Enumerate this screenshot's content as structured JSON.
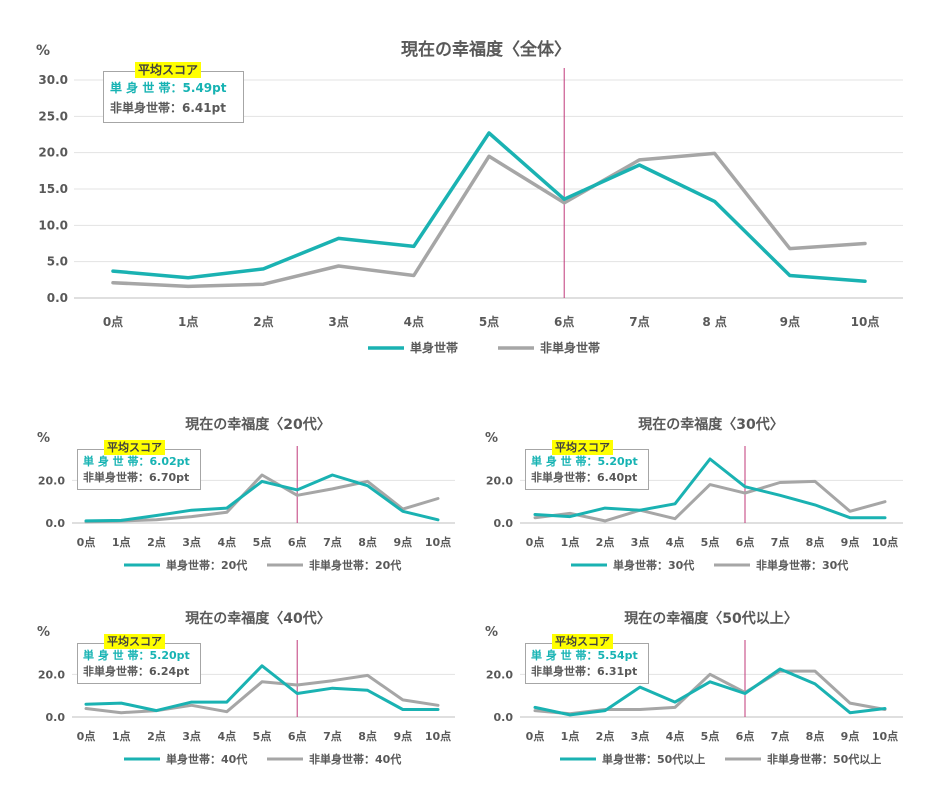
{
  "chart_data": [
    {
      "type": "line",
      "title": "現在の幸福度〈全体〉",
      "ylabel": "%",
      "ylim": [
        0,
        30
      ],
      "yticks": [
        "0.0",
        "5.0",
        "10.0",
        "15.0",
        "20.0",
        "25.0",
        "30.0"
      ],
      "categories": [
        "0点",
        "1点",
        "2点",
        "3点",
        "4点",
        "5点",
        "6点",
        "7点",
        "8 点",
        "9点",
        "10点"
      ],
      "marker_category": "6点",
      "grid": true,
      "legend": "bottom",
      "series": [
        {
          "name": "単身世帯",
          "color": "#1ab2b2",
          "values": [
            3.7,
            2.8,
            4.0,
            8.2,
            7.1,
            22.7,
            13.6,
            18.3,
            13.3,
            3.1,
            2.3
          ]
        },
        {
          "name": "非単身世帯",
          "color": "#a6a6a6",
          "values": [
            2.1,
            1.6,
            1.9,
            4.4,
            3.1,
            19.5,
            13.1,
            19.0,
            19.9,
            6.8,
            7.5
          ]
        }
      ],
      "score": {
        "heading": "平均スコア",
        "single": "単 身 世 帯：5.49pt",
        "non_single": "非単身世帯：6.41pt"
      }
    },
    {
      "type": "line",
      "title": "現在の幸福度〈20代〉",
      "ylabel": "%",
      "ylim": [
        0,
        30
      ],
      "yticks": [
        "0.0",
        "20.0"
      ],
      "categories": [
        "0点",
        "1点",
        "2点",
        "3点",
        "4点",
        "5点",
        "6点",
        "7点",
        "8点",
        "9点",
        "10点"
      ],
      "marker_category": "6点",
      "grid": true,
      "legend": "bottom",
      "series": [
        {
          "name": "単身世帯：20代",
          "color": "#1ab2b2",
          "values": [
            1.0,
            1.2,
            3.5,
            6.0,
            7.0,
            19.5,
            15.5,
            22.5,
            17.5,
            5.5,
            1.5
          ]
        },
        {
          "name": "非単身世帯：20代",
          "color": "#a6a6a6",
          "values": [
            0.5,
            1.0,
            1.5,
            3.0,
            5.0,
            22.5,
            13.0,
            16.0,
            19.5,
            6.5,
            11.5
          ]
        }
      ],
      "score": {
        "heading": "平均スコア",
        "single": "単 身 世 帯：6.02pt",
        "non_single": "非単身世帯：6.70pt"
      }
    },
    {
      "type": "line",
      "title": "現在の幸福度〈30代〉",
      "ylabel": "%",
      "ylim": [
        0,
        30
      ],
      "yticks": [
        "0.0",
        "20.0"
      ],
      "categories": [
        "0点",
        "1点",
        "2点",
        "3点",
        "4点",
        "5点",
        "6点",
        "7点",
        "8点",
        "9点",
        "10点"
      ],
      "marker_category": "6点",
      "grid": true,
      "legend": "bottom",
      "series": [
        {
          "name": "単身世帯：30代",
          "color": "#1ab2b2",
          "values": [
            4.0,
            3.0,
            7.0,
            6.0,
            9.0,
            30.0,
            17.0,
            13.0,
            8.5,
            2.5,
            2.5
          ]
        },
        {
          "name": "非単身世帯：30代",
          "color": "#a6a6a6",
          "values": [
            2.5,
            4.5,
            1.0,
            6.0,
            2.0,
            18.0,
            14.0,
            19.0,
            19.5,
            5.5,
            10.0
          ]
        }
      ],
      "score": {
        "heading": "平均スコア",
        "single": "単 身 世 帯：5.20pt",
        "non_single": "非単身世帯：6.40pt"
      }
    },
    {
      "type": "line",
      "title": "現在の幸福度〈40代〉",
      "ylabel": "%",
      "ylim": [
        0,
        30
      ],
      "yticks": [
        "0.0",
        "20.0"
      ],
      "categories": [
        "0点",
        "1点",
        "2点",
        "3点",
        "4点",
        "5点",
        "6点",
        "7点",
        "8点",
        "9点",
        "10点"
      ],
      "marker_category": "6点",
      "grid": true,
      "legend": "bottom",
      "series": [
        {
          "name": "単身世帯：40代",
          "color": "#1ab2b2",
          "values": [
            6.0,
            6.5,
            3.0,
            7.0,
            7.0,
            24.0,
            11.0,
            13.5,
            12.5,
            3.5,
            3.5
          ]
        },
        {
          "name": "非単身世帯：40代",
          "color": "#a6a6a6",
          "values": [
            4.0,
            2.0,
            3.0,
            5.5,
            2.5,
            16.5,
            15.0,
            17.0,
            19.5,
            8.0,
            5.5
          ]
        }
      ],
      "score": {
        "heading": "平均スコア",
        "single": "単 身 世 帯：5.20pt",
        "non_single": "非単身世帯：6.24pt"
      }
    },
    {
      "type": "line",
      "title": "現在の幸福度〈50代以上〉",
      "ylabel": "%",
      "ylim": [
        0,
        30
      ],
      "yticks": [
        "0.0",
        "20.0"
      ],
      "categories": [
        "0点",
        "1点",
        "2点",
        "3点",
        "4点",
        "5点",
        "6点",
        "7点",
        "8点",
        "9点",
        "10点"
      ],
      "marker_category": "6点",
      "grid": true,
      "legend": "bottom",
      "series": [
        {
          "name": "単身世帯：50代以上",
          "color": "#1ab2b2",
          "values": [
            4.5,
            1.0,
            3.0,
            14.0,
            7.0,
            16.5,
            11.0,
            22.5,
            15.5,
            2.0,
            4.0
          ]
        },
        {
          "name": "非単身世帯：50代以上",
          "color": "#a6a6a6",
          "values": [
            3.0,
            1.5,
            3.5,
            3.5,
            4.5,
            20.0,
            11.5,
            21.5,
            21.5,
            6.5,
            3.5
          ]
        }
      ],
      "score": {
        "heading": "平均スコア",
        "single": "単 身 世 帯：5.54pt",
        "non_single": "非単身世帯：6.31pt"
      }
    }
  ]
}
